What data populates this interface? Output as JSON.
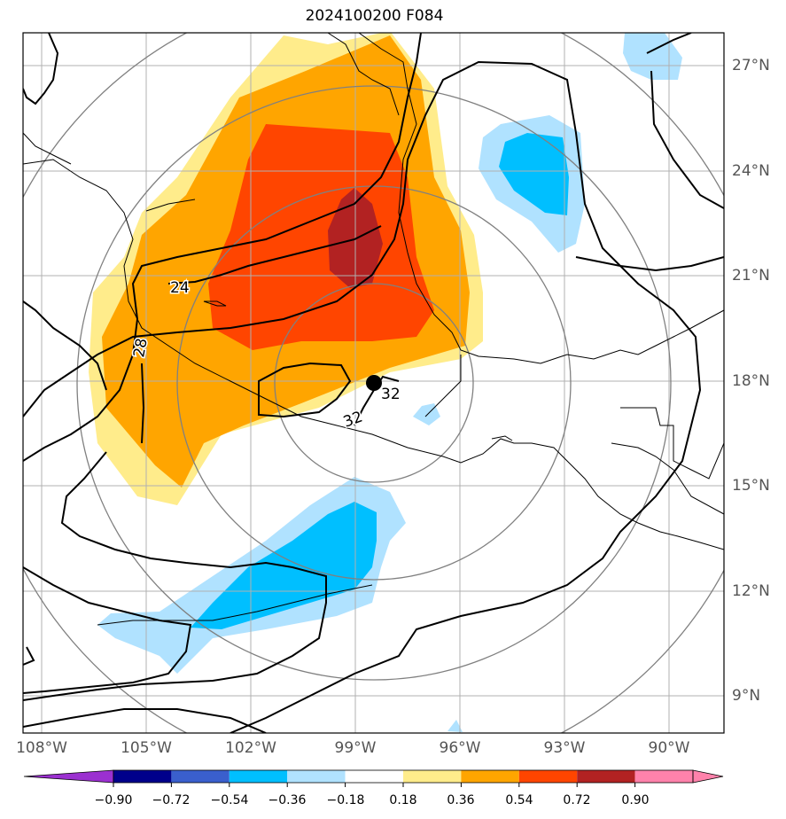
{
  "title": "2024100200 F084",
  "longitude_labels": [
    "108°W",
    "105°W",
    "102°W",
    "99°W",
    "96°W",
    "93°W",
    "90°W"
  ],
  "latitude_labels": [
    "27°N",
    "24°N",
    "21°N",
    "18°N",
    "15°N",
    "12°N",
    "9°N"
  ],
  "contour_labels": [
    "24",
    "28",
    "32",
    "32"
  ],
  "colorbar": {
    "ticks": [
      "−0.90",
      "−0.72",
      "−0.54",
      "−0.36",
      "−0.18",
      "0.18",
      "0.36",
      "0.54",
      "0.72",
      "0.90"
    ],
    "colors": [
      "#9b30d0",
      "#00008b",
      "#3a5fcd",
      "#00bfff",
      "#b0e2ff",
      "#ffffff",
      "#ffec8b",
      "#ffa500",
      "#ff4500",
      "#b22222",
      "#ff82ab"
    ]
  },
  "storm_center": {
    "lon": "98.5°W",
    "lat": "18°N"
  },
  "colors": {
    "grid": "#b0b0b0",
    "range_rings": "#808080",
    "coastline": "#000000",
    "contours": "#000000"
  }
}
